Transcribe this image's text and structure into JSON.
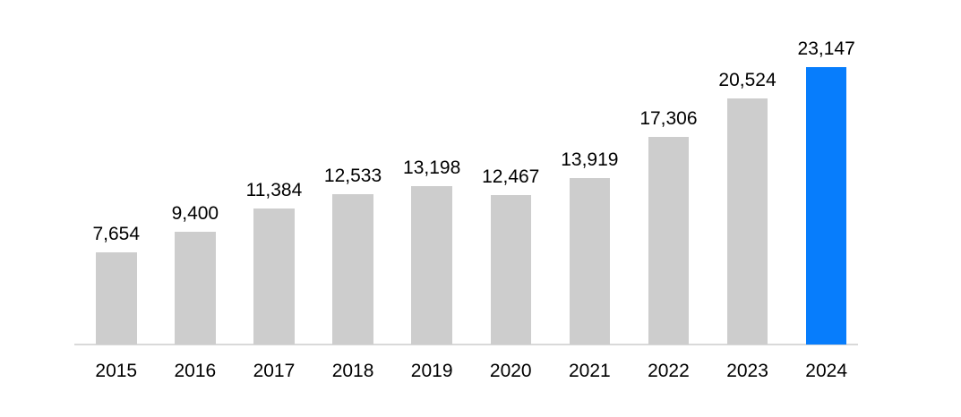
{
  "chart_data": {
    "type": "bar",
    "categories": [
      "2015",
      "2016",
      "2017",
      "2018",
      "2019",
      "2020",
      "2021",
      "2022",
      "2023",
      "2024"
    ],
    "values": [
      7654,
      9400,
      11384,
      12533,
      13198,
      12467,
      13919,
      17306,
      20524,
      23147
    ],
    "value_labels": [
      "7,654",
      "9,400",
      "11,384",
      "12,533",
      "13,198",
      "12,467",
      "13,919",
      "17,306",
      "20,524",
      "23,147"
    ],
    "title": "",
    "xlabel": "",
    "ylabel": "",
    "ylim": [
      0,
      23147
    ],
    "grid": false,
    "legend": null,
    "bar_color": "#cdcdcd",
    "highlight_index": 9,
    "highlight_color": "#077dfc",
    "axis_line_color": "#d9d9d9",
    "label_color": "#000000"
  }
}
